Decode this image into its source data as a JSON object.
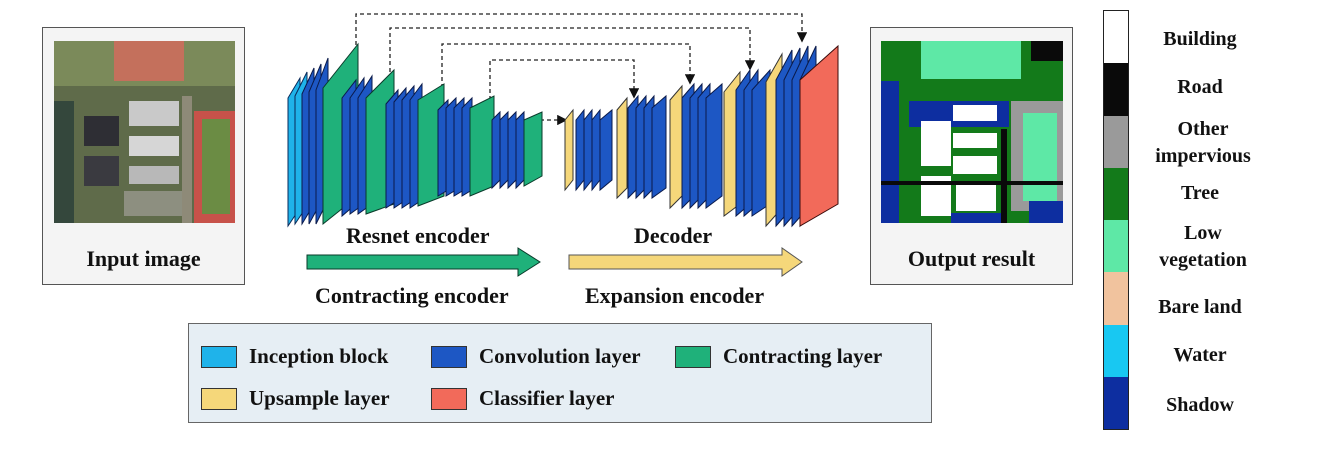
{
  "input_panel": {
    "label": "Input image"
  },
  "output_panel": {
    "label": "Output result"
  },
  "stage_labels": {
    "resnet": "Resnet encoder",
    "decoder": "Decoder",
    "contracting": "Contracting encoder",
    "expansion": "Expansion encoder"
  },
  "legend": [
    {
      "label": "Inception block",
      "color": "#1fb3ea"
    },
    {
      "label": "Convolution layer",
      "color": "#1d57c4"
    },
    {
      "label": "Contracting layer",
      "color": "#1fb17a"
    },
    {
      "label": "Upsample layer",
      "color": "#f5d77a"
    },
    {
      "label": "Classifier layer",
      "color": "#f26a5a"
    }
  ],
  "classes": [
    {
      "label": "Building",
      "color": "#ffffff"
    },
    {
      "label": "Road",
      "color": "#0a0a0a"
    },
    {
      "label": "Other impervious",
      "color": "#9a9a9a"
    },
    {
      "label": "Tree",
      "color": "#137a1a"
    },
    {
      "label": "Low vegetation",
      "color": "#5ee8a6"
    },
    {
      "label": "Bare land",
      "color": "#f1c39e"
    },
    {
      "label": "Water",
      "color": "#18c8f2"
    },
    {
      "label": "Shadow",
      "color": "#0d2ea0"
    }
  ],
  "colors": {
    "contracting_arrow": "#1fb17a",
    "expansion_arrow": "#f5d77a"
  }
}
